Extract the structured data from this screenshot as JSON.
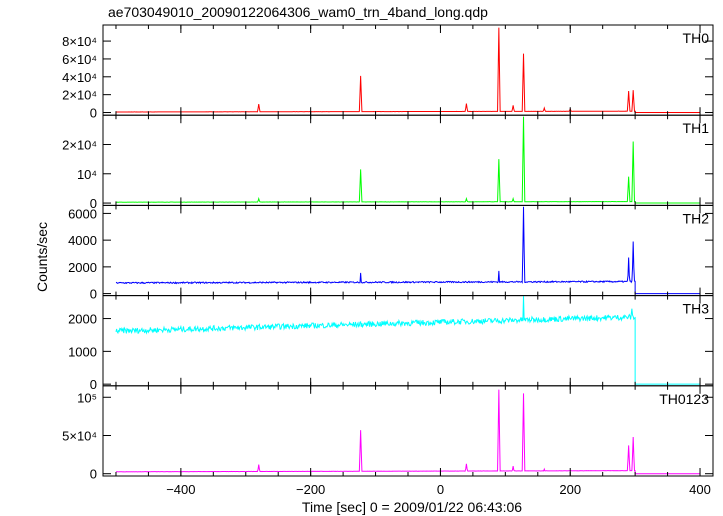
{
  "title": "ae703049010_20090122064306_wam0_trn_4band_long.qdp",
  "xlabel": "Time [sec] 0 = 2009/01/22 06:43:06",
  "ylabel": "Counts/sec",
  "colors": {
    "TH0": "#ff0000",
    "TH1": "#00ff00",
    "TH2": "#0000ff",
    "TH3": "#00ffff",
    "TH0123": "#ff00ff"
  },
  "chart_data": {
    "type": "line",
    "xlim": [
      -520,
      420
    ],
    "xticks": [
      -400,
      -200,
      0,
      200,
      400
    ],
    "xtick_labels": [
      "−400",
      "−200",
      "0",
      "200",
      "400"
    ],
    "panels": [
      {
        "name": "TH0",
        "color": "#ff0000",
        "ylim": [
          -3000,
          98000
        ],
        "yticks": [
          0,
          20000,
          40000,
          60000,
          80000
        ],
        "ytick_labels": [
          "0",
          "2×10⁴",
          "4×10⁴",
          "6×10⁴",
          "8×10⁴"
        ],
        "baseline_start": 600,
        "baseline_end": 1500,
        "peaks": [
          [
            -280,
            9500
          ],
          [
            -123,
            41000
          ],
          [
            40,
            10000
          ],
          [
            90,
            95000
          ],
          [
            112,
            8000
          ],
          [
            128,
            66000
          ],
          [
            160,
            5000
          ],
          [
            200,
            4000
          ],
          [
            290,
            24000
          ],
          [
            297,
            25000
          ]
        ],
        "end_x": 300,
        "end_value": 0
      },
      {
        "name": "TH1",
        "color": "#00ff00",
        "ylim": [
          -800,
          30000
        ],
        "yticks": [
          0,
          10000,
          20000
        ],
        "ytick_labels": [
          "0",
          "10⁴",
          "2×10⁴"
        ],
        "baseline_start": 300,
        "baseline_end": 500,
        "peaks": [
          [
            -280,
            1500
          ],
          [
            -123,
            11500
          ],
          [
            40,
            1500
          ],
          [
            90,
            15000
          ],
          [
            112,
            1500
          ],
          [
            128,
            29500
          ],
          [
            290,
            9000
          ],
          [
            297,
            21000
          ]
        ],
        "end_x": 300,
        "end_value": 0
      },
      {
        "name": "TH2",
        "color": "#0000ff",
        "ylim": [
          -150,
          6600
        ],
        "yticks": [
          0,
          2000,
          4000,
          6000
        ],
        "ytick_labels": [
          "0",
          "2000",
          "4000",
          "6000"
        ],
        "baseline_start": 800,
        "baseline_end": 900,
        "peaks": [
          [
            -123,
            1550
          ],
          [
            90,
            1700
          ],
          [
            128,
            6500
          ],
          [
            290,
            2700
          ],
          [
            297,
            3900
          ]
        ],
        "end_x": 300,
        "end_value": 0
      },
      {
        "name": "TH3",
        "color": "#00ffff",
        "ylim": [
          -50,
          2700
        ],
        "yticks": [
          0,
          1000,
          2000
        ],
        "ytick_labels": [
          "0",
          "1000",
          "2000"
        ],
        "baseline_start": 1620,
        "baseline_end": 2050,
        "peaks": [
          [
            128,
            2700
          ],
          [
            295,
            2300
          ]
        ],
        "end_x": 300,
        "end_value": 0
      },
      {
        "name": "TH0123",
        "color": "#ff00ff",
        "ylim": [
          -3000,
          115000
        ],
        "yticks": [
          0,
          50000,
          100000
        ],
        "ytick_labels": [
          "0",
          "5×10⁴",
          "10⁵"
        ],
        "baseline_start": 2500,
        "baseline_end": 4000,
        "peaks": [
          [
            -280,
            12000
          ],
          [
            -123,
            57000
          ],
          [
            40,
            13000
          ],
          [
            90,
            110000
          ],
          [
            112,
            10000
          ],
          [
            128,
            105000
          ],
          [
            160,
            6000
          ],
          [
            290,
            37000
          ],
          [
            297,
            48000
          ]
        ],
        "end_x": 300,
        "end_value": 0
      }
    ]
  }
}
